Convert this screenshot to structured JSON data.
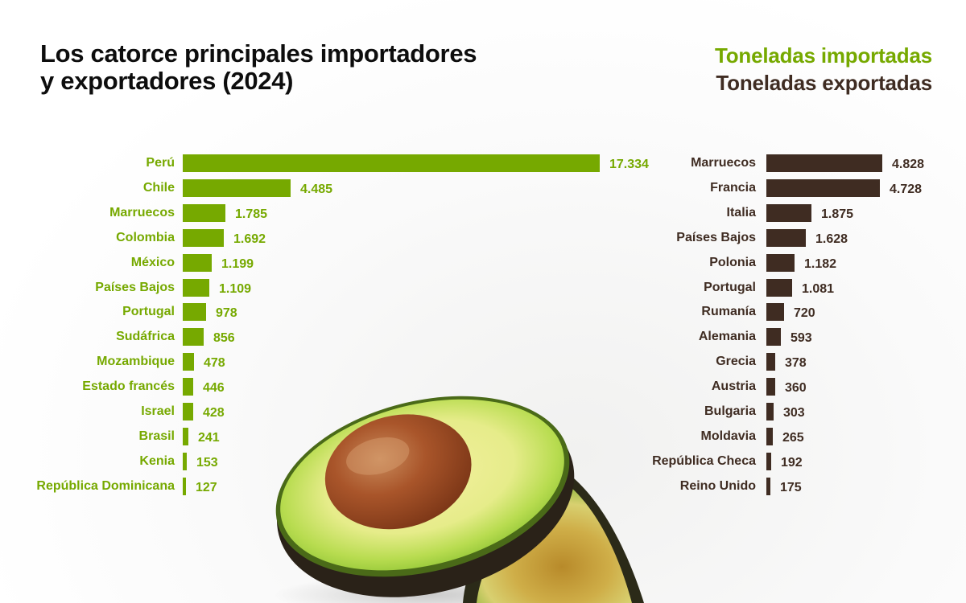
{
  "title_line1": "Los catorce principales importadores",
  "title_line2": "y exportadores (2024)",
  "legend": {
    "imports": "Toneladas importadas",
    "exports": "Toneladas exportadas"
  },
  "colors": {
    "imports": "#76a900",
    "exports": "#3f2c22",
    "title": "#0d0d0d",
    "background": "#ffffff"
  },
  "chart_data": [
    {
      "type": "bar",
      "orientation": "horizontal",
      "title": "Toneladas importadas",
      "series_name": "Toneladas importadas",
      "color": "#76a900",
      "categories": [
        "Perú",
        "Chile",
        "Marruecos",
        "Colombia",
        "México",
        "Países Bajos",
        "Portugal",
        "Sudáfrica",
        "Mozambique",
        "Estado francés",
        "Israel",
        "Brasil",
        "Kenia",
        "República Dominicana"
      ],
      "values": [
        17334,
        4485,
        1785,
        1692,
        1199,
        1109,
        978,
        856,
        478,
        446,
        428,
        241,
        153,
        127
      ],
      "labels": [
        "17.334",
        "4.485",
        "1.785",
        "1.692",
        "1.199",
        "1.109",
        "978",
        "856",
        "478",
        "446",
        "428",
        "241",
        "153",
        "127"
      ],
      "xlabel": "",
      "ylabel": "",
      "grid": false,
      "axes_visible": false
    },
    {
      "type": "bar",
      "orientation": "horizontal",
      "title": "Toneladas exportadas",
      "series_name": "Toneladas exportadas",
      "color": "#3f2c22",
      "categories": [
        "Marruecos",
        "Francia",
        "Italia",
        "Países Bajos",
        "Polonia",
        "Portugal",
        "Rumanía",
        "Alemania",
        "Grecia",
        "Austria",
        "Bulgaria",
        "Moldavia",
        "República Checa",
        "Reino Unido"
      ],
      "values": [
        4828,
        4728,
        1875,
        1628,
        1182,
        1081,
        720,
        593,
        378,
        360,
        303,
        265,
        192,
        175
      ],
      "labels": [
        "4.828",
        "4.728",
        "1.875",
        "1.628",
        "1.182",
        "1.081",
        "720",
        "593",
        "378",
        "360",
        "303",
        "265",
        "192",
        "175"
      ],
      "xlabel": "",
      "ylabel": "",
      "grid": false,
      "axes_visible": false
    }
  ],
  "image": {
    "subject": "avocado-halves"
  }
}
